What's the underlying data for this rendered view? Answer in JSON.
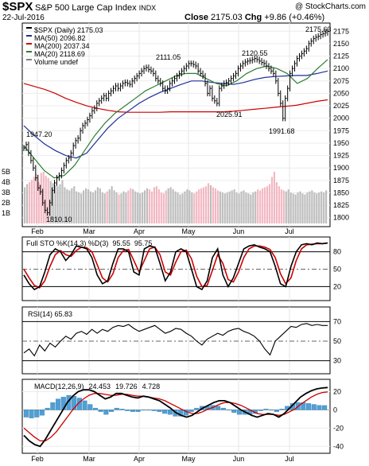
{
  "chart_data": {
    "type": "line",
    "header": {
      "ticker": "$SPX",
      "name": "S&P 500 Large Cap Index",
      "exchange": "INDX",
      "brand": "@ StockCharts.com",
      "date": "22-Jul-2016",
      "close_label": "Close",
      "close": "2175.03",
      "chg_label": "Chg",
      "chg": "+9.86 (+0.46%)"
    },
    "months": [
      "Feb",
      "Mar",
      "Apr",
      "May",
      "Jun",
      "Jul"
    ],
    "price_panel": {
      "legend": [
        {
          "text": "$SPX (Daily) 2175.03",
          "color": "#000000"
        },
        {
          "text": "MA(50) 2096.82",
          "color": "#1f2f99"
        },
        {
          "text": "MA(200) 2037.34",
          "color": "#cc0000"
        },
        {
          "text": "MA(20) 2118.69",
          "color": "#2e7d32"
        },
        {
          "text": "Volume undef",
          "color": "#808080"
        }
      ],
      "ylim": [
        1790,
        2185
      ],
      "yticks": [
        "2175",
        "2150",
        "2125",
        "2100",
        "2075",
        "2050",
        "2025",
        "2000",
        "1975",
        "1950",
        "1925",
        "1900",
        "1875",
        "1850",
        "1825",
        "1800"
      ],
      "volume_ticks": [
        "5B",
        "4B",
        "3B",
        "2B",
        "1B"
      ],
      "annotations": [
        "1947.20",
        "1810.10",
        "2111.05",
        "2025.91",
        "2120.55",
        "1991.68",
        "2175.63"
      ],
      "close_series": [
        1940,
        1947,
        1930,
        1915,
        1900,
        1880,
        1860,
        1852,
        1830,
        1815,
        1810,
        1830,
        1855,
        1870,
        1880,
        1885,
        1895,
        1905,
        1915,
        1920,
        1930,
        1945,
        1955,
        1960,
        1975,
        1985,
        1990,
        1997,
        2005,
        2015,
        2020,
        2030,
        2035,
        2040,
        2045,
        2040,
        2050,
        2055,
        2060,
        2065,
        2060,
        2065,
        2070,
        2072,
        2070,
        2068,
        2075,
        2080,
        2085,
        2090,
        2095,
        2100,
        2102,
        2098,
        2095,
        2090,
        2080,
        2075,
        2070,
        2060,
        2055,
        2060,
        2070,
        2075,
        2080,
        2085,
        2090,
        2095,
        2100,
        2105,
        2110,
        2110,
        2108,
        2105,
        2095,
        2090,
        2085,
        2070,
        2050,
        2060,
        2040,
        2035,
        2030,
        2060,
        2065,
        2070,
        2072,
        2075,
        2080,
        2085,
        2090,
        2100,
        2105,
        2110,
        2113,
        2115,
        2116,
        2118,
        2120,
        2118,
        2115,
        2112,
        2110,
        2105,
        2100,
        2095,
        2090,
        2075,
        2050,
        2030,
        2000,
        2040,
        2060,
        2090,
        2100,
        2110,
        2120,
        2125,
        2130,
        2135,
        2140,
        2150,
        2155,
        2160,
        2163,
        2165,
        2168,
        2170,
        2172,
        2175
      ],
      "ma50": [
        1985,
        1965,
        1948,
        1935,
        1925,
        1920,
        1930,
        1955,
        1980,
        2000,
        2015,
        2030,
        2042,
        2052,
        2060,
        2068,
        2075,
        2075,
        2072,
        2070,
        2068,
        2072,
        2078,
        2082,
        2084,
        2085,
        2086,
        2086,
        2090,
        2095
      ],
      "ma200": [
        2070,
        2064,
        2058,
        2050,
        2040,
        2032,
        2025,
        2020,
        2016,
        2013,
        2012,
        2012,
        2012,
        2012,
        2013,
        2013,
        2013,
        2013,
        2013,
        2013,
        2014,
        2016,
        2018,
        2020,
        2022,
        2024,
        2026,
        2030,
        2034,
        2037
      ],
      "ma20": [
        1945,
        1920,
        1895,
        1880,
        1885,
        1905,
        1935,
        1965,
        1990,
        2010,
        2025,
        2040,
        2055,
        2065,
        2075,
        2085,
        2090,
        2090,
        2080,
        2070,
        2065,
        2075,
        2090,
        2100,
        2105,
        2100,
        2090,
        2070,
        2080,
        2100,
        2118
      ],
      "volume_B": [
        3.5,
        3.8,
        4.0,
        4.2,
        4.5,
        4.8,
        4.0,
        4.9,
        5.0,
        4.6,
        4.4,
        4.1,
        3.9,
        3.7,
        3.6,
        3.8,
        4.2,
        3.5,
        3.3,
        3.2,
        3.4,
        3.6,
        3.1,
        3.0,
        2.9,
        3.2,
        3.4,
        3.3,
        3.1,
        3.0,
        3.2,
        3.5,
        3.4,
        3.0,
        2.9,
        3.1,
        3.3,
        3.6,
        3.2,
        3.0,
        2.8,
        2.9,
        3.1,
        3.0,
        3.2,
        3.4,
        3.3,
        3.1,
        3.0,
        2.9,
        3.0,
        3.2,
        3.4,
        3.3,
        3.1,
        3.5,
        3.6,
        3.3,
        3.0,
        2.9,
        3.2,
        3.4,
        3.5,
        3.3,
        3.1,
        3.0,
        2.8,
        2.9,
        3.1,
        3.3,
        3.2,
        3.0,
        2.9,
        3.1,
        3.3,
        3.4,
        3.5,
        3.6,
        3.9,
        3.7,
        3.5,
        3.4,
        3.2,
        3.1,
        3.0,
        2.9,
        3.0,
        3.1,
        3.2,
        3.3,
        3.0,
        2.9,
        3.1,
        3.2,
        3.0,
        2.9,
        2.8,
        3.0,
        3.1,
        3.3,
        3.2,
        3.4,
        3.5,
        3.6,
        3.8,
        4.5,
        5.0,
        4.0,
        3.6,
        3.3,
        3.2,
        3.1,
        3.3,
        3.0,
        2.9,
        2.8,
        3.0,
        3.1,
        2.9,
        2.8,
        3.0,
        3.1,
        3.2,
        3.0,
        2.9,
        3.0,
        3.1,
        3.0,
        3.2
      ]
    },
    "sto_panel": {
      "legend": [
        {
          "text": "Full STO %K(14,3) %D(3)",
          "color": "#000000"
        },
        {
          "text": "95.55",
          "color": "#000000"
        },
        {
          "text": "95.75",
          "color": "#cc0000"
        }
      ],
      "ylim": [
        0,
        100
      ],
      "yticks": [
        "80",
        "50",
        "20"
      ],
      "k": [
        40,
        25,
        15,
        20,
        45,
        75,
        85,
        80,
        65,
        75,
        90,
        88,
        85,
        70,
        40,
        25,
        30,
        60,
        85,
        85,
        80,
        45,
        40,
        85,
        90,
        88,
        60,
        30,
        45,
        80,
        85,
        80,
        50,
        20,
        15,
        30,
        70,
        85,
        40,
        20,
        35,
        60,
        85,
        90,
        92,
        88,
        85,
        80,
        55,
        25,
        20,
        55,
        80,
        92,
        94,
        92,
        95,
        94,
        95
      ],
      "d": [
        50,
        35,
        22,
        18,
        30,
        55,
        75,
        82,
        75,
        72,
        82,
        88,
        87,
        80,
        58,
        35,
        28,
        42,
        70,
        82,
        84,
        65,
        45,
        65,
        85,
        88,
        75,
        45,
        40,
        62,
        80,
        83,
        68,
        38,
        20,
        22,
        48,
        75,
        60,
        32,
        28,
        45,
        70,
        85,
        90,
        90,
        88,
        84,
        70,
        42,
        25,
        35,
        65,
        85,
        92,
        93,
        94,
        94,
        95
      ]
    },
    "rsi_panel": {
      "legend": [
        {
          "text": "RSI(14) 65.83",
          "color": "#000000"
        }
      ],
      "ylim": [
        20,
        80
      ],
      "yticks": [
        "70",
        "50",
        "30"
      ],
      "rsi": [
        38,
        42,
        35,
        46,
        40,
        48,
        44,
        50,
        55,
        52,
        58,
        60,
        57,
        62,
        58,
        62,
        60,
        64,
        66,
        65,
        67,
        63,
        60,
        62,
        64,
        66,
        62,
        58,
        60,
        63,
        62,
        58,
        55,
        50,
        46,
        52,
        55,
        58,
        56,
        60,
        62,
        63,
        60,
        58,
        55,
        50,
        42,
        36,
        50,
        55,
        60,
        65,
        64,
        67,
        68,
        66,
        67,
        66,
        66
      ]
    },
    "macd_panel": {
      "legend": [
        {
          "text": "MACD(12,26,9)",
          "color": "#000000"
        },
        {
          "text": "24.453",
          "color": "#000000"
        },
        {
          "text": "19.726",
          "color": "#cc0000"
        },
        {
          "text": "4.728",
          "color": "#1f7bbf"
        }
      ],
      "ylim": [
        -45,
        30
      ],
      "yticks": [
        "20",
        "0",
        "-20",
        "-40"
      ],
      "macd": [
        -28,
        -34,
        -38,
        -40,
        -32,
        -22,
        -12,
        -2,
        8,
        15,
        20,
        22,
        22,
        20,
        16,
        12,
        14,
        18,
        18,
        16,
        14,
        13,
        15,
        14,
        12,
        10,
        6,
        2,
        -3,
        -6,
        -8,
        -6,
        -2,
        2,
        5,
        8,
        10,
        10,
        8,
        4,
        0,
        -3,
        -6,
        -8,
        -6,
        -4,
        -5,
        -8,
        -4,
        2,
        8,
        14,
        18,
        21,
        23,
        24,
        24.5
      ],
      "signal": [
        -20,
        -25,
        -30,
        -34,
        -34,
        -30,
        -24,
        -16,
        -8,
        0,
        7,
        12,
        16,
        18,
        18,
        17,
        16,
        16,
        17,
        17,
        16,
        15,
        15,
        14,
        13,
        12,
        10,
        7,
        4,
        1,
        -2,
        -4,
        -4,
        -2,
        1,
        3,
        6,
        8,
        8,
        7,
        5,
        2,
        -1,
        -4,
        -5,
        -5,
        -5,
        -6,
        -5,
        -2,
        1,
        6,
        10,
        14,
        17,
        19,
        19.7
      ]
    }
  }
}
